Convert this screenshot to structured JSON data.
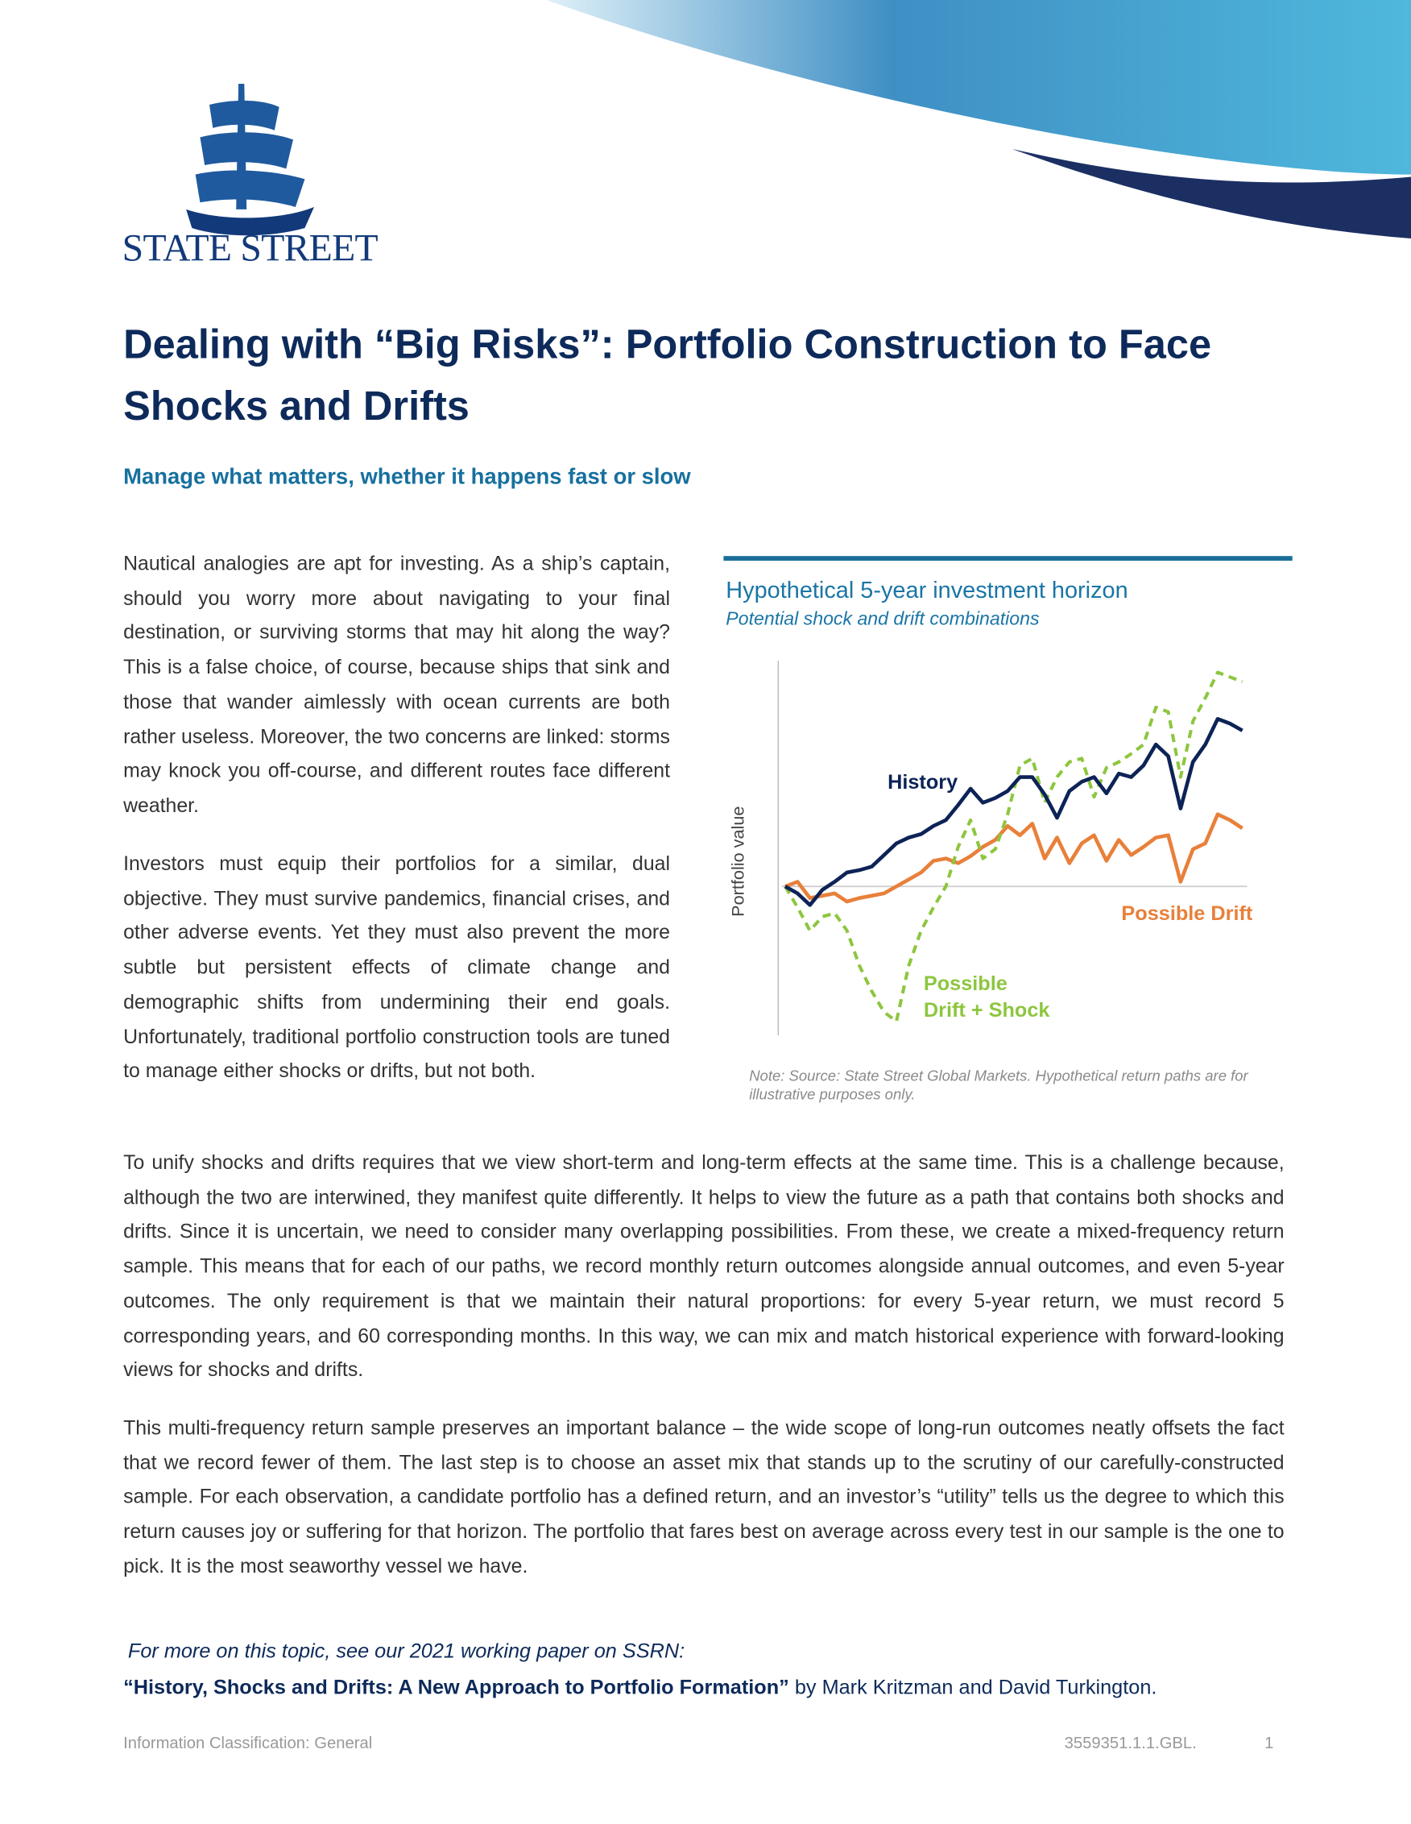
{
  "header": {
    "logo_text": "STATE STREET"
  },
  "title": "Dealing with “Big Risks”: Portfolio Construction to Face Shocks and Drifts",
  "subtitle": "Manage what matters, whether it happens fast or slow",
  "paragraphs": [
    "Nautical analogies are apt for investing. As a ship’s captain, should you worry more about navigating to your final destination, or surviving storms that may hit along the way? This is a false choice, of course, because ships that sink and those that wander aimlessly with ocean currents are both rather useless. Moreover, the two concerns are linked: storms may knock you off-course, and different routes face different weather.",
    "Investors must equip their portfolios for a similar, dual objective. They must survive pandemics, financial crises, and other adverse events. Yet they must also prevent the more subtle but persistent effects of climate change and demographic shifts from undermining their end goals. Unfortunately, traditional portfolio construction tools are tuned to manage either shocks or drifts, but not both.",
    "To unify shocks and drifts requires that we view short-term and long-term effects at the same time. This is a challenge because, although the two are interwined, they manifest quite differently. It helps to view the future as a path that contains both shocks and drifts. Since it is uncertain, we need to consider many overlapping possibilities. From these, we create a mixed-frequency return sample. This means that for each of our paths, we record monthly return outcomes alongside annual outcomes, and even 5-year outcomes. The only requirement is that we maintain their natural proportions: for every 5-year return, we must record 5 corresponding years, and 60 corresponding months. In this way, we can mix and match historical experience with forward-looking views for shocks and drifts.",
    "This multi-frequency return sample preserves an important balance – the wide scope of long-run outcomes neatly offsets the fact that we record fewer of them. The last step is to choose an asset mix that stands up to the scrutiny of our carefully-constructed sample. For each observation, a candidate portfolio has a defined return, and an investor’s “utility” tells us the degree to which this return causes joy or suffering for that horizon. The portfolio that fares best on average across every test in our sample is the one to pick. It is the most seaworthy vessel we have."
  ],
  "chart_data": {
    "type": "line",
    "title": "Hypothetical 5-year investment horizon",
    "subtitle": "Potential shock and drift combinations",
    "y_label": "Portfolio value",
    "note": "Note:  Source: State Street Global Markets. Hypothetical return paths are for illustrative purposes only.",
    "categories": [
      null,
      null,
      null,
      null,
      null,
      null,
      null,
      null,
      null,
      null,
      null,
      null,
      null,
      null,
      null,
      null,
      null,
      null,
      null,
      null,
      null,
      null,
      null,
      null,
      null,
      null,
      null,
      null,
      null,
      null,
      null,
      null,
      null,
      null,
      null,
      null,
      null,
      null
    ],
    "ylim": [
      36,
      196
    ],
    "baseline": 100,
    "series": [
      {
        "name": "History",
        "color": "#0d2357",
        "dashed": false,
        "values": [
          100,
          97,
          92,
          98.5,
          102,
          106,
          107,
          108.5,
          113.5,
          118.5,
          121,
          122.5,
          126,
          128.5,
          135,
          142,
          136,
          138,
          141,
          147,
          147,
          139.5,
          129.5,
          141,
          145,
          147,
          140,
          148.5,
          147,
          152,
          161,
          156,
          133.5,
          153.5,
          161,
          172,
          170,
          167
        ]
      },
      {
        "name": "Possible Drift",
        "color": "#e8803a",
        "dashed": false,
        "values": [
          100,
          102,
          95,
          96,
          97,
          93.5,
          95,
          96,
          97,
          100,
          103,
          106,
          111,
          112,
          110,
          113,
          117,
          120,
          126,
          122,
          127,
          112,
          121,
          110,
          118.5,
          122,
          111,
          120,
          113.5,
          117,
          121,
          122,
          102,
          116,
          118.5,
          131,
          128.5,
          125
        ]
      },
      {
        "name": "Possible\nDrift + Shock",
        "color": "#8dc63f",
        "dashed": true,
        "values": [
          100,
          91,
          81,
          87,
          88.5,
          81,
          66,
          55,
          46,
          42,
          66,
          81,
          91,
          100,
          117,
          128.5,
          112,
          116,
          131,
          152,
          155,
          136,
          147,
          153.5,
          155,
          138.5,
          151,
          153.5,
          157,
          161,
          177,
          175,
          147,
          171,
          181,
          192,
          190,
          188
        ]
      }
    ]
  },
  "more": {
    "intro": "For more on this topic, see our 2021 working paper on SSRN:",
    "paper": "“History, Shocks and Drifts: A New Approach to Portfolio Formation”",
    "authors": " by Mark Kritzman and David Turkington."
  },
  "footer": {
    "classification": "Information Classification: General",
    "code": "3559351.1.1.GBL.",
    "page": "1"
  }
}
